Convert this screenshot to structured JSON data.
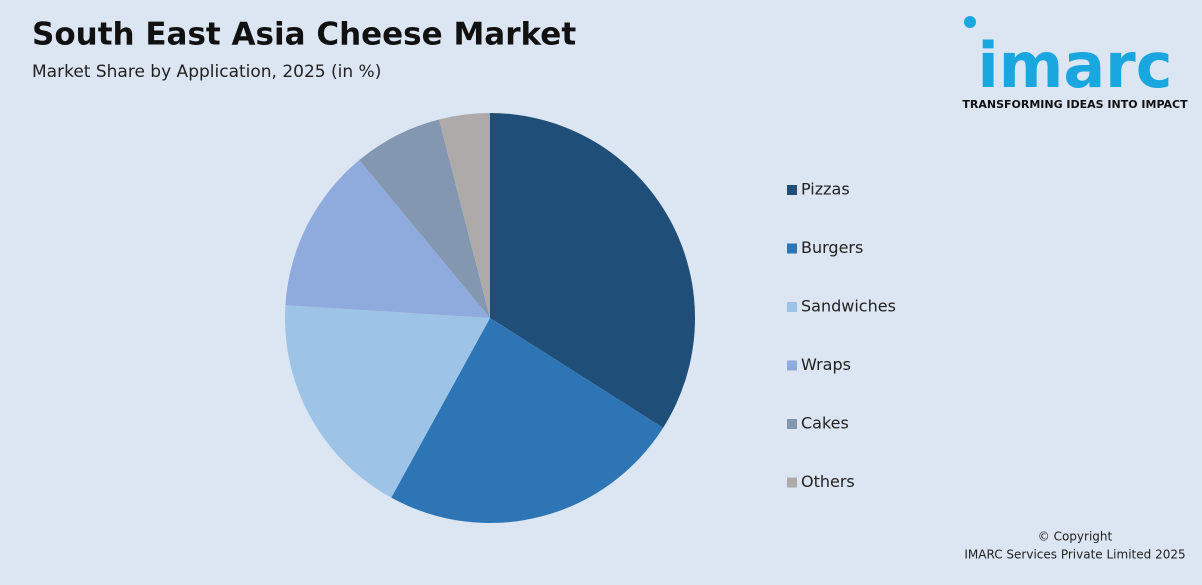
{
  "chart_data": {
    "type": "pie",
    "title": "South East Asia Cheese Market",
    "subtitle": "Market Share by Application, 2025 (in %)",
    "categories": [
      "Pizzas",
      "Burgers",
      "Sandwiches",
      "Wraps",
      "Cakes",
      "Others"
    ],
    "values": [
      34,
      24,
      18,
      13,
      7,
      4
    ],
    "colors": [
      "#1f4e79",
      "#2e75b6",
      "#9dc3e6",
      "#8faadc",
      "#8497b0",
      "#aeaaaa"
    ],
    "legend": "right"
  },
  "logo": {
    "name": "imarc",
    "tagline": "TRANSFORMING IDEAS INTO IMPACT"
  },
  "footer": {
    "copyright": "© Copyright",
    "company": "IMARC Services Private Limited 2025"
  }
}
